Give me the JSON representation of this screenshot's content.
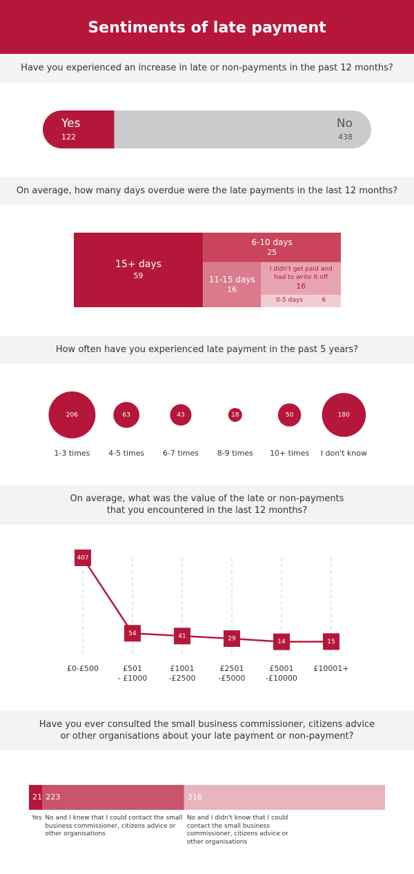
{
  "title": "Sentiments of late payment",
  "chart_data": [
    {
      "type": "pill",
      "title": "Have you experienced an increase in late or non-payments in the past 12 months?",
      "categories": [
        "Yes",
        "No"
      ],
      "values": [
        122,
        438
      ],
      "colors": [
        "#b5173a",
        "#cccccc"
      ]
    },
    {
      "type": "treemap",
      "title": "On average, how many days overdue were the late payments in the last 12 months?",
      "categories": [
        "15+ days",
        "6-10 days",
        "11-15 days",
        "I didn't get paid and had to write it off",
        "0-5 days"
      ],
      "values": [
        59,
        25,
        16,
        16,
        6
      ],
      "colors": [
        "#b5173a",
        "#c9445c",
        "#d97b8c",
        "#e8a5b1",
        "#f2ccd3"
      ]
    },
    {
      "type": "bubble",
      "title": "How often have you experienced late payment in the past 5 years?",
      "categories": [
        "1-3 times",
        "4-5 times",
        "6-7 times",
        "8-9 times",
        "10+ times",
        "I don't know"
      ],
      "values": [
        206,
        63,
        43,
        18,
        50,
        180
      ],
      "color": "#b5173a"
    },
    {
      "type": "line",
      "title": "On average, what was the value of the late or non-payments\nthat you encountered in the last 12 months?",
      "categories": [
        "£0-£500",
        "£501\n- £1000",
        "£1001\n-£2500",
        "£2501\n-£5000",
        "£5001\n-£10000",
        "£10001+"
      ],
      "values": [
        407,
        54,
        41,
        29,
        14,
        15
      ],
      "color": "#b5173a"
    },
    {
      "type": "stacked",
      "title": "Have you ever consulted the small business commissioner, citizens advice\nor other organisations about your late payment or non-payment?",
      "categories": [
        "Yes",
        "No and I knew that I could contact the small business commissioner, citizens advice or other organisations",
        "No and I didn't know that I could contact the small business commissioner, citizens advice or other organisations"
      ],
      "values": [
        21,
        223,
        316
      ],
      "colors": [
        "#b5173a",
        "#c9546b",
        "#e8b4be"
      ]
    }
  ]
}
